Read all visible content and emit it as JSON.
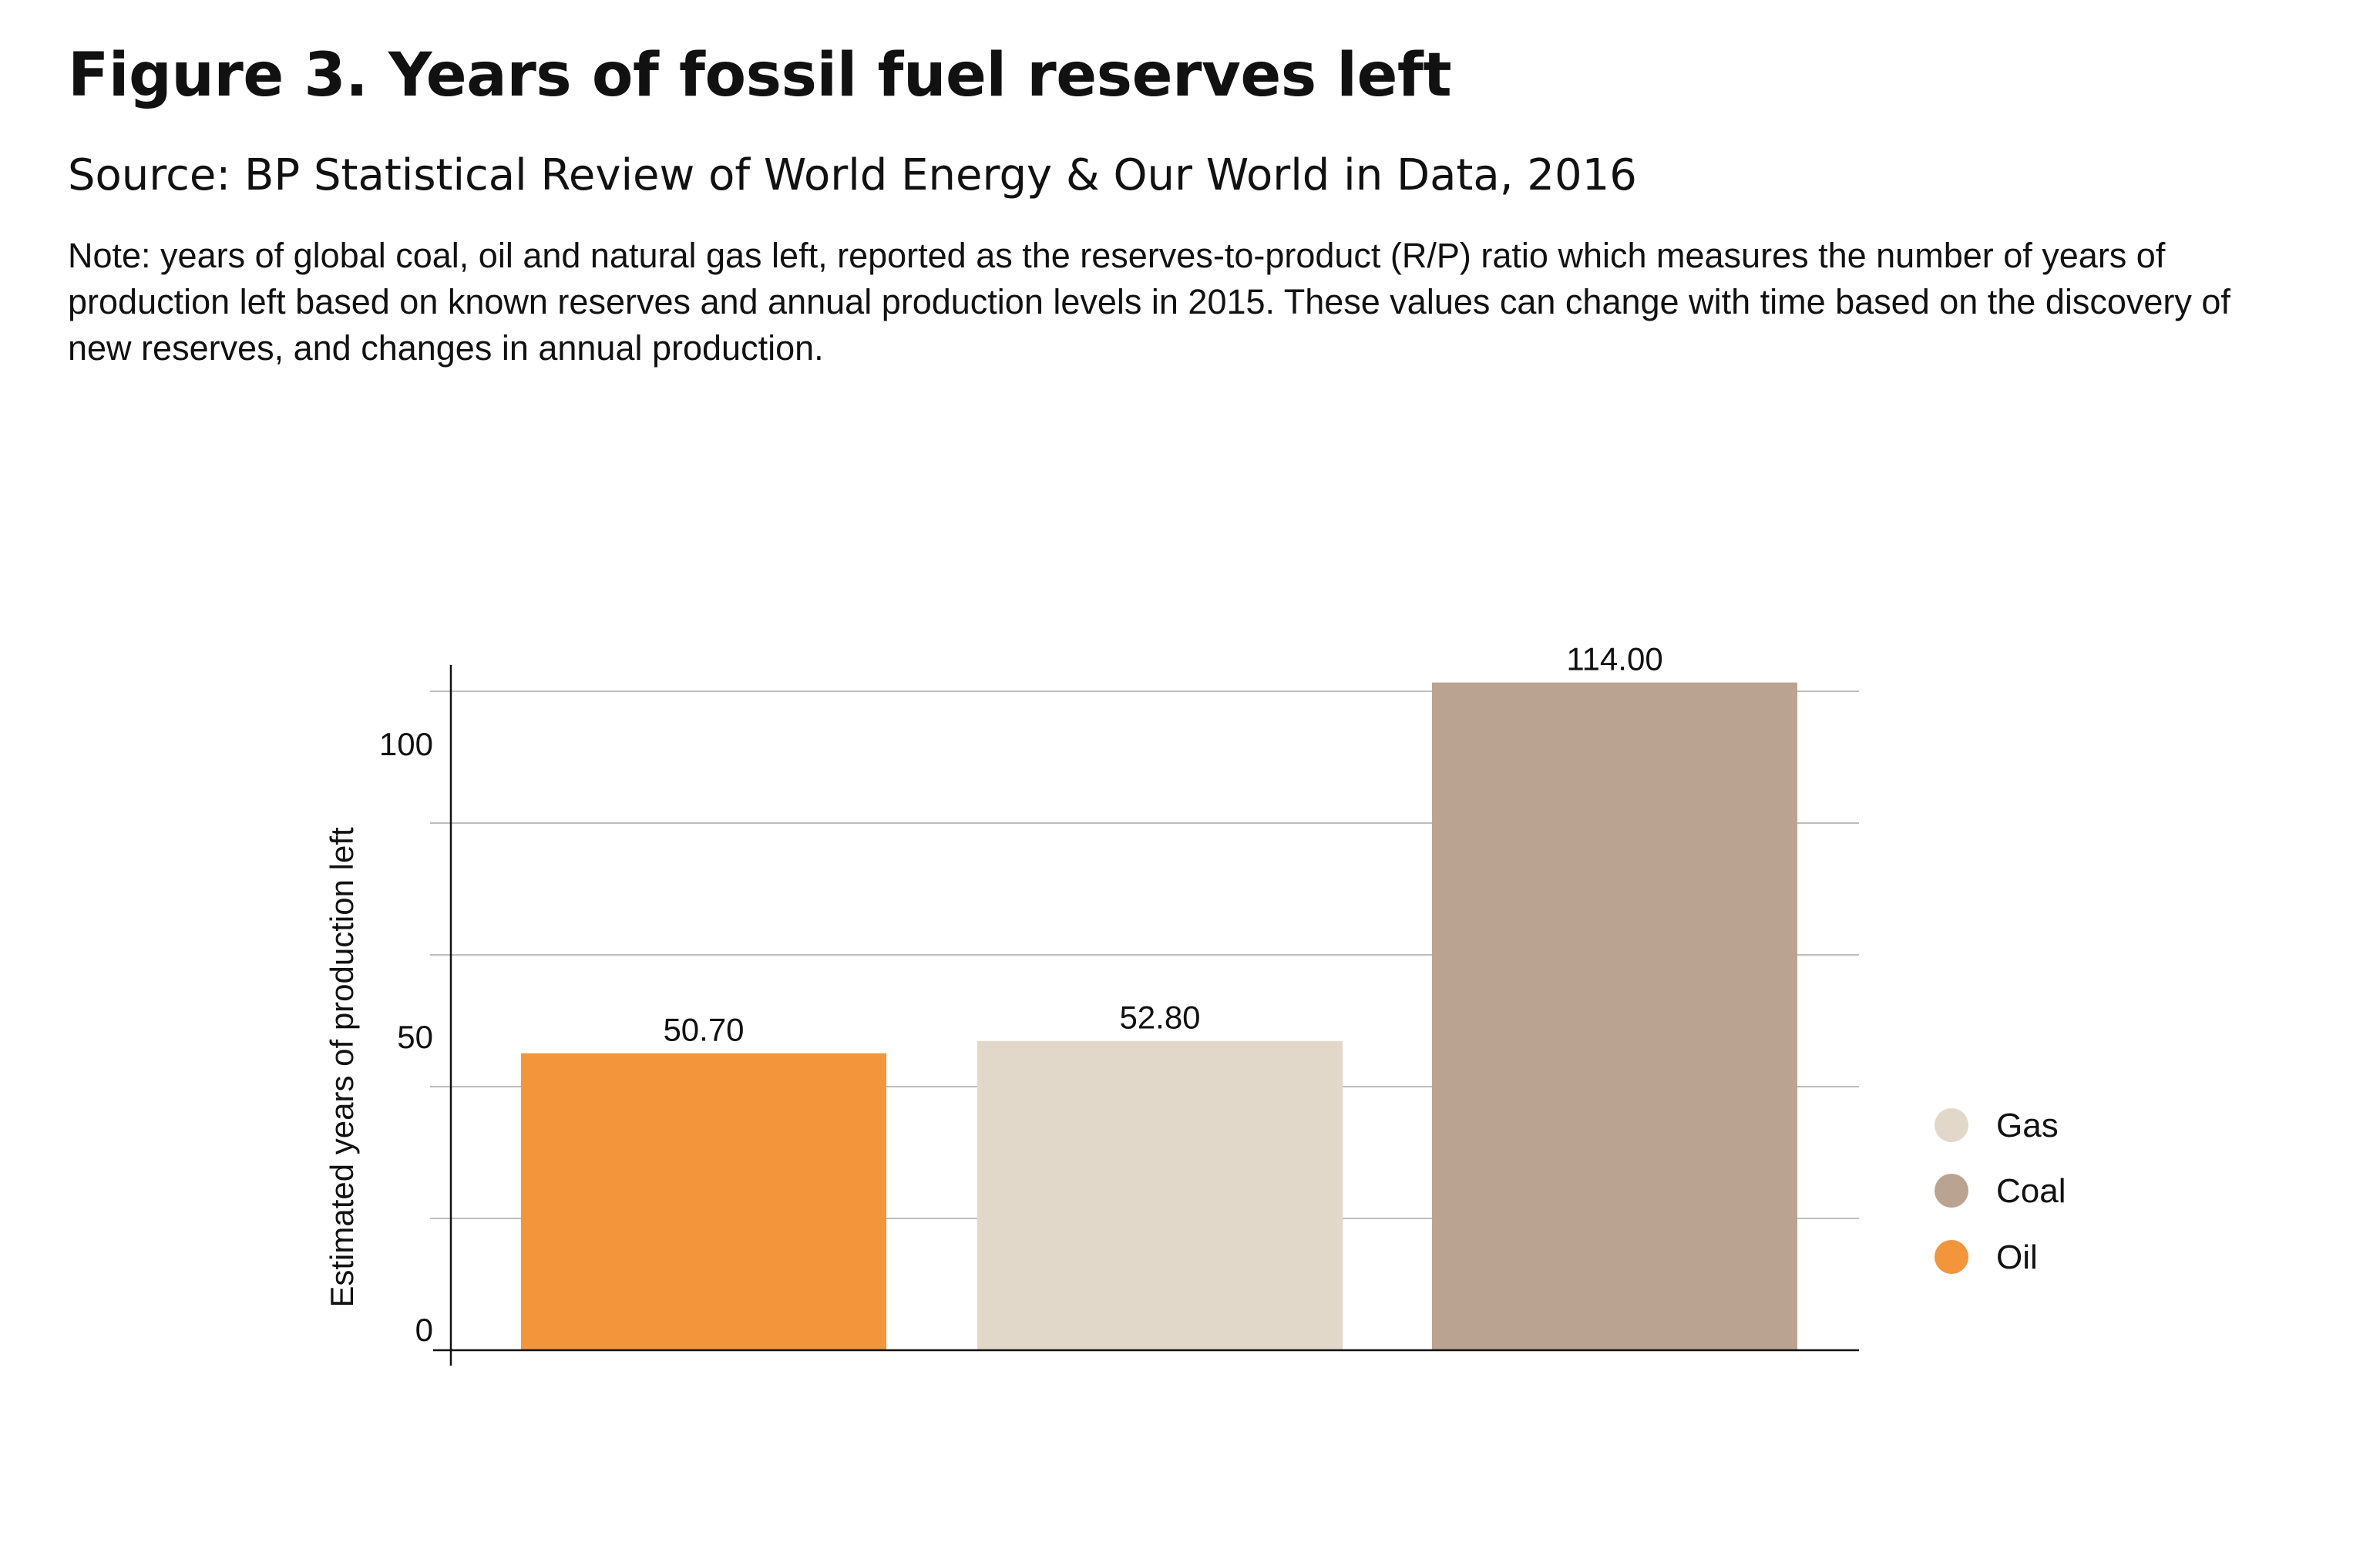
{
  "header": {
    "title": "Figure 3. Years of fossil fuel reserves left",
    "subtitle": "Source: BP Statistical Review of World Energy & Our World in Data, 2016",
    "note": "Note: years of global coal, oil and natural gas left, reported as the reserves-to-product (R/P) ratio which measures the number of years of production left based on known reserves and annual production levels in 2015. These values can change with time based on the discovery of new reserves, and changes in annual production."
  },
  "chart_data": {
    "type": "bar",
    "title": "",
    "xlabel": "",
    "ylabel": "Estimated years of production left",
    "ylim": [
      0,
      117
    ],
    "yticks": [
      0,
      50,
      100
    ],
    "yticklabels": [
      "0",
      "50",
      "100"
    ],
    "gridlines": [
      0,
      22.5,
      45,
      67.5,
      90,
      112.5
    ],
    "grid": true,
    "legend_position": "right",
    "categories": [
      "Oil",
      "Gas",
      "Coal"
    ],
    "values": [
      50.7,
      52.8,
      114.0
    ],
    "value_labels": [
      "50.70",
      "52.80",
      "114.00"
    ],
    "colors": [
      "#f2953b",
      "#e1d8ca",
      "#bba392"
    ],
    "legend": [
      {
        "label": "Gas",
        "color": "#e1d8ca"
      },
      {
        "label": "Coal",
        "color": "#bba392"
      },
      {
        "label": "Oil",
        "color": "#f2953b"
      }
    ]
  }
}
